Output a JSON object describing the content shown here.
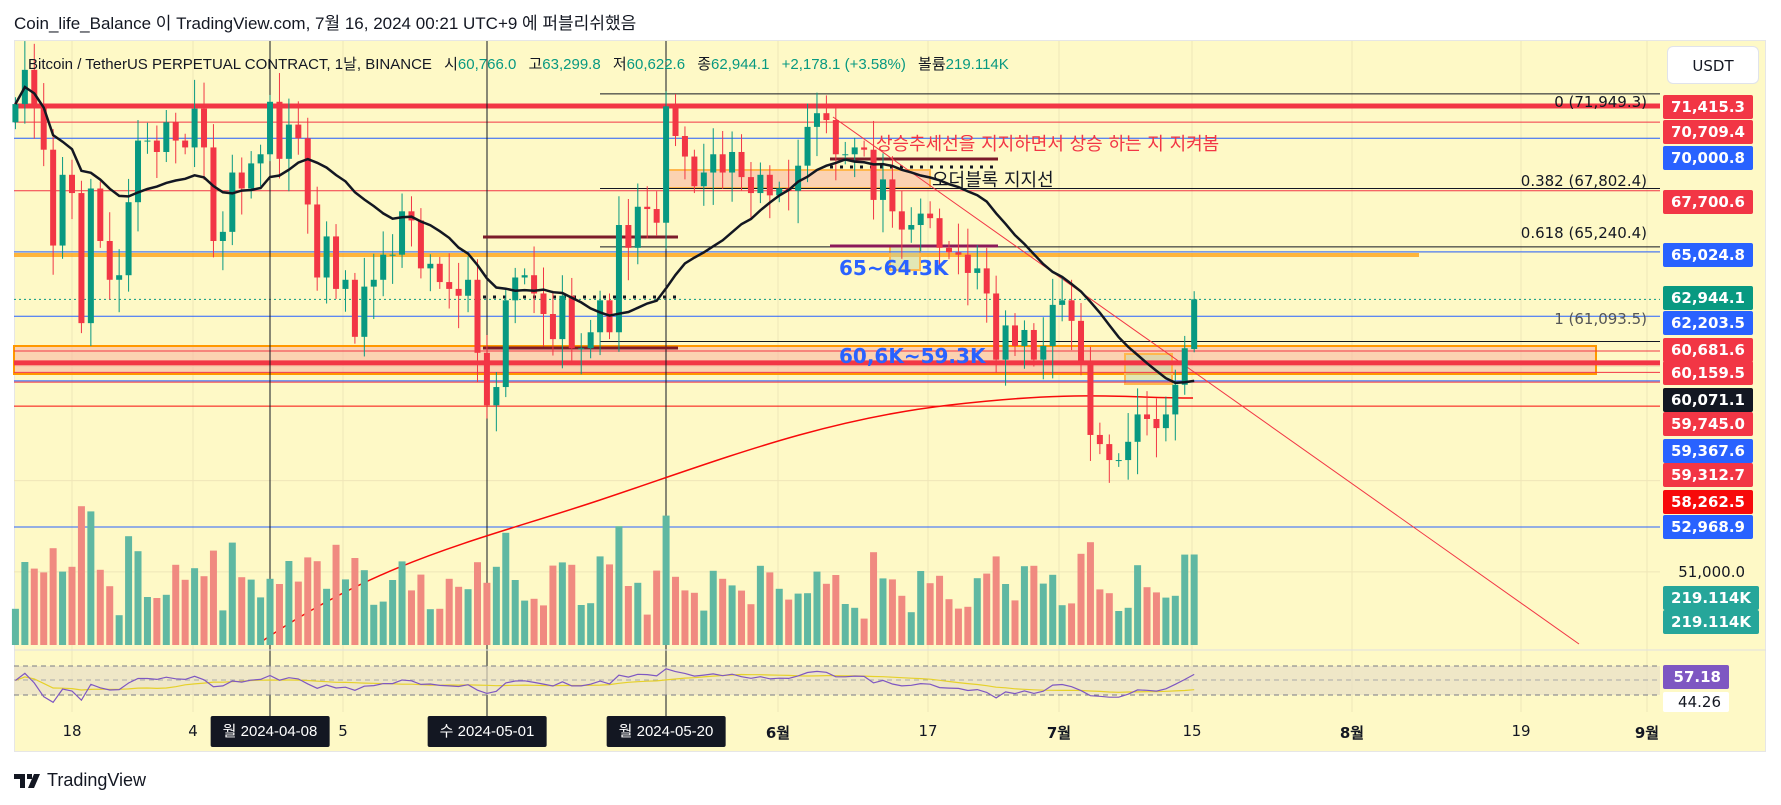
{
  "header": {
    "title": "Coin_life_Balance 이 TradingView.com, 7월 16, 2024 00:21 UTC+9 에 퍼블리쉬했음"
  },
  "legend": {
    "symbol": "Bitcoin / TetherUS PERPETUAL CONTRACT, 1날, BINANCE",
    "open_label": "시",
    "open": "60,766.0",
    "high_label": "고",
    "high": "63,299.8",
    "low_label": "저",
    "low": "60,622.6",
    "close_label": "종",
    "close": "62,944.1",
    "change": "+2,178.1 (+3.58%)",
    "volume_label": "볼륨",
    "volume": "219.114K"
  },
  "currency_button": "USDT",
  "price_labels": [
    {
      "text": "71,415.3",
      "color": "#f23645"
    },
    {
      "text": "70,709.4",
      "color": "#f23645"
    },
    {
      "text": "70,000.8",
      "color": "#2962ff"
    },
    {
      "text": "67,700.6",
      "color": "#f23645"
    },
    {
      "text": "65,024.8",
      "color": "#2962ff"
    },
    {
      "text": "62,944.1",
      "color": "#089981"
    },
    {
      "text": "62,203.5",
      "color": "#2962ff"
    },
    {
      "text": "60,681.6",
      "color": "#f23645"
    },
    {
      "text": "60,159.5",
      "color": "#f23645"
    },
    {
      "text": "60,071.1",
      "color": "#131722"
    },
    {
      "text": "59,745.0",
      "color": "#f23645"
    },
    {
      "text": "59,367.6",
      "color": "#2962ff"
    },
    {
      "text": "59,312.7",
      "color": "#f23645"
    },
    {
      "text": "58,262.5",
      "color": "#f70a0a"
    },
    {
      "text": "52,968.9",
      "color": "#2962ff"
    }
  ],
  "axis_price": "51,000.0",
  "volume_labels": [
    "219.114K",
    "219.114K"
  ],
  "rsi_labels": [
    "57.18",
    "44.26"
  ],
  "fib_labels": [
    "0 (71,949.3)",
    "0.382 (67,802.4)",
    "0.618 (65,240.4)",
    "1 (61,093.5)"
  ],
  "annotations": {
    "trend_note": "상승추세선을 지지하면서 상승 하는 지 지켜봄",
    "order_block": "오더블록 지지선",
    "zone_upper": "65~64.3K",
    "zone_lower": "60,6K~59.3K"
  },
  "time_ticks": [
    "18",
    "4",
    "5",
    "6월",
    "17",
    "7월",
    "15",
    "8월",
    "19",
    "9월"
  ],
  "date_pills": [
    "월 2024-04-08",
    "수 2024-05-01",
    "월 2024-05-20"
  ],
  "footer": {
    "brand": "TradingView"
  },
  "colors": {
    "up": "#089981",
    "down": "#f23645",
    "panel": "#fef9c6",
    "rsi": "#7e57c2"
  },
  "chart_data": {
    "type": "candlestick",
    "title": "Bitcoin / TetherUS PERPETUAL CONTRACT, 1D, BINANCE",
    "start_date": "2024-03-12",
    "closes": [
      71.5,
      73.0,
      71.4,
      69.5,
      65.3,
      68.4,
      67.6,
      61.9,
      67.8,
      65.5,
      63.8,
      64.0,
      67.2,
      69.9,
      69.9,
      69.4,
      70.7,
      69.9,
      69.6,
      71.3,
      69.6,
      65.5,
      65.9,
      68.5,
      67.8,
      68.9,
      69.3,
      71.6,
      69.1,
      70.6,
      70.0,
      67.1,
      63.9,
      65.7,
      63.4,
      63.8,
      61.3,
      63.5,
      63.8,
      64.9,
      64.9,
      66.8,
      66.4,
      64.3,
      64.5,
      63.7,
      63.4,
      63.1,
      63.8,
      60.6,
      58.3,
      59.1,
      62.9,
      63.9,
      64.0,
      63.2,
      62.3,
      61.2,
      63.1,
      60.8,
      60.8,
      61.5,
      62.9,
      61.5,
      66.2,
      65.2,
      67.0,
      66.9,
      66.3,
      71.4,
      70.1,
      69.2,
      67.9,
      68.5,
      69.3,
      68.5,
      69.4,
      68.3,
      67.6,
      68.4,
      67.5,
      67.8,
      67.7,
      68.8,
      70.5,
      71.1,
      70.8,
      69.3,
      69.3,
      69.6,
      69.5,
      67.3,
      68.2,
      66.8,
      66.0,
      66.2,
      66.7,
      66.5,
      65.2,
      65.0,
      64.9,
      64.1,
      64.3,
      63.2,
      60.3,
      61.8,
      60.9,
      61.6,
      60.3,
      60.9,
      62.7,
      62.9,
      62.0,
      60.2,
      57.0,
      56.6,
      55.9,
      55.9,
      56.7,
      57.9,
      57.7,
      57.3,
      57.9,
      59.2,
      60.8,
      62.944
    ],
    "units": "thousand USDT",
    "last": {
      "open": 60766.0,
      "high": 63299.8,
      "low": 60622.6,
      "close": 62944.1,
      "volume": "219.114K"
    },
    "levels": [
      71415.3,
      70709.4,
      70000.8,
      67700.6,
      65024.8,
      62944.1,
      62203.5,
      60681.6,
      60159.5,
      59745.0,
      59367.6,
      59312.7,
      58262.5,
      52968.9
    ],
    "fib": [
      {
        "level": 0,
        "price": 71949.3
      },
      {
        "level": 0.382,
        "price": 67802.4
      },
      {
        "level": 0.618,
        "price": 65240.4
      },
      {
        "level": 1,
        "price": 61093.5
      }
    ],
    "rsi_last": 57.18,
    "rsi_ma_last": 44.26,
    "ylim": [
      51000,
      72500
    ]
  }
}
